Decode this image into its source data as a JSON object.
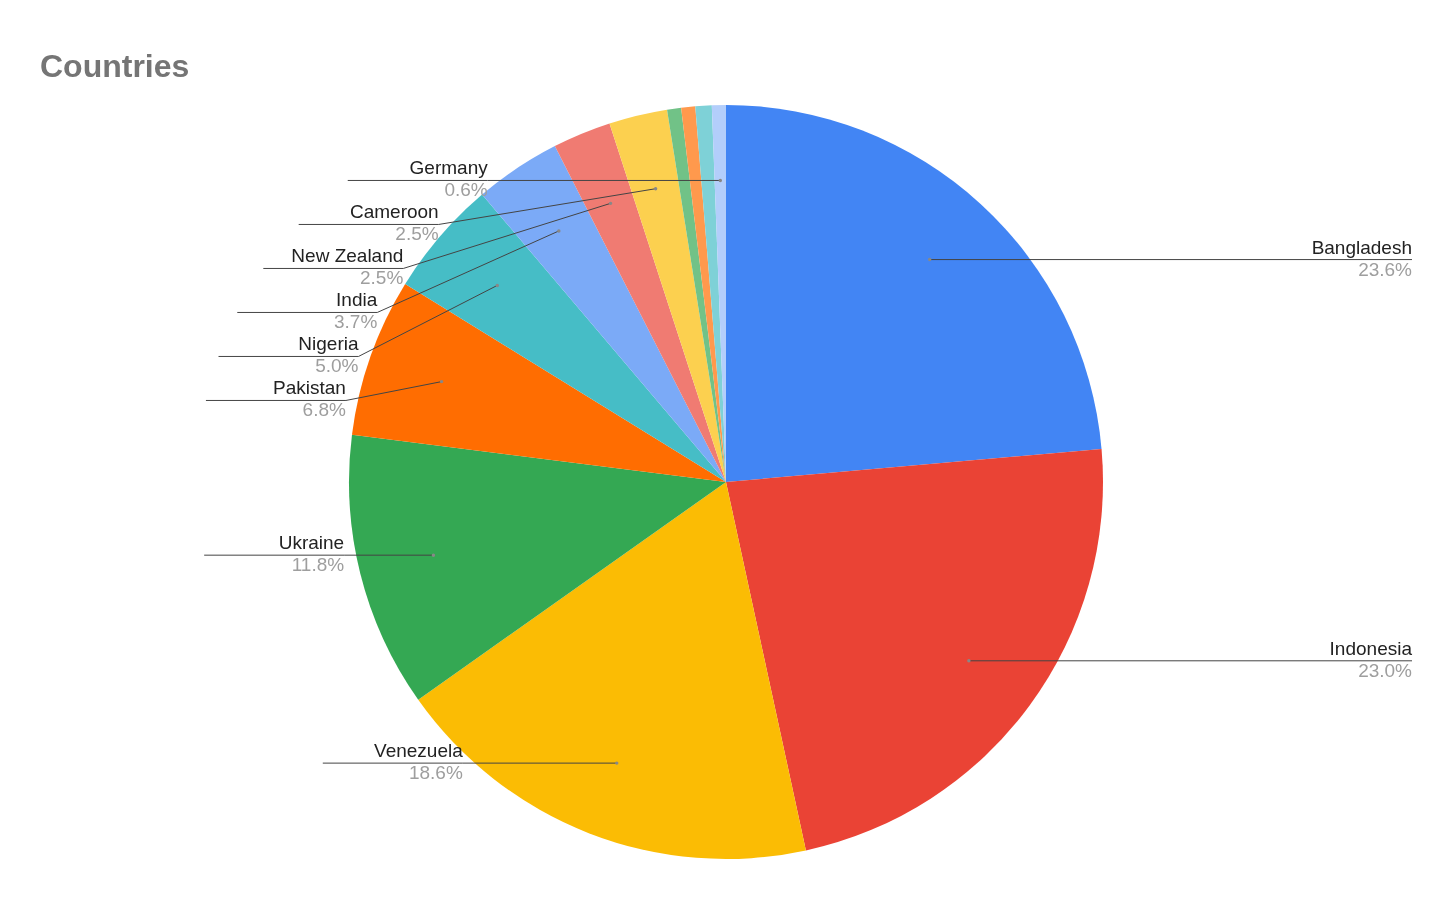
{
  "chart_data": {
    "type": "pie",
    "title": "Countries",
    "categories": [
      "Bangladesh",
      "Indonesia",
      "Venezuela",
      "Ukraine",
      "Pakistan",
      "Nigeria",
      "India",
      "New Zealand",
      "Cameroon",
      null,
      null,
      null,
      "Germany"
    ],
    "values": [
      23.6,
      23.0,
      18.6,
      11.8,
      6.8,
      5.0,
      3.7,
      2.5,
      2.5,
      0.6,
      0.6,
      0.7,
      0.6
    ],
    "value_labels": [
      "23.6%",
      "23.0%",
      "18.6%",
      "11.8%",
      "6.8%",
      "5.0%",
      "3.7%",
      "2.5%",
      "2.5%",
      null,
      null,
      null,
      "0.6%"
    ],
    "colors": [
      "#4285f4",
      "#ea4335",
      "#fbbc04",
      "#34a853",
      "#ff6d01",
      "#46bdc6",
      "#7baaf7",
      "#f07b72",
      "#fcd04f",
      "#71c287",
      "#ff994d",
      "#7ed1d7",
      "#b3cefb"
    ]
  }
}
